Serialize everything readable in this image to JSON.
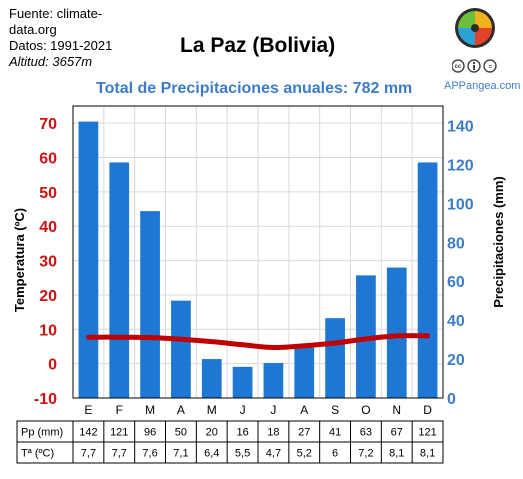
{
  "source": {
    "line1": "Fuente: climate-",
    "line2": "data.org",
    "line3": "Datos: 1991-2021",
    "line4": "Altitud: 3657m"
  },
  "brand": "APPangea.com",
  "colors": {
    "bars": "#1f77d4",
    "temperature_line": "#c00000",
    "left_axis": "#cc1111",
    "right_axis": "#3d7cc9"
  },
  "chart_data": {
    "type": "bar",
    "title": "La Paz (Bolivia)",
    "subtitle": "Total de Precipitaciones anuales: 782 mm",
    "categories": [
      "E",
      "F",
      "M",
      "A",
      "M",
      "J",
      "J",
      "A",
      "S",
      "O",
      "N",
      "D"
    ],
    "ylabel_left": "Temperatura (ºC)",
    "ylabel_right": "Precipitaciones (mm)",
    "ylim_left": [
      -10,
      75
    ],
    "ylim_right": [
      0,
      150
    ],
    "yticks_left": [
      -10,
      0,
      10,
      20,
      30,
      40,
      50,
      60,
      70
    ],
    "yticks_right": [
      0,
      20,
      40,
      60,
      80,
      100,
      120,
      140
    ],
    "series": [
      {
        "name": "Pp (mm)",
        "type": "bar",
        "axis": "right",
        "values": [
          142,
          121,
          96,
          50,
          20,
          16,
          18,
          27,
          41,
          63,
          67,
          121
        ]
      },
      {
        "name": "Tª (ºC)",
        "type": "line",
        "axis": "left",
        "values": [
          7.7,
          7.7,
          7.6,
          7.1,
          6.4,
          5.5,
          4.7,
          5.2,
          6,
          7.2,
          8.1,
          8.1
        ]
      }
    ],
    "table": {
      "rows": [
        {
          "label": "Pp (mm)",
          "cells": [
            "142",
            "121",
            "96",
            "50",
            "20",
            "16",
            "18",
            "27",
            "41",
            "63",
            "67",
            "121"
          ]
        },
        {
          "label": "Tª (ºC)",
          "cells": [
            "7,7",
            "7,7",
            "7,6",
            "7,1",
            "6,4",
            "5,5",
            "4,7",
            "5,2",
            "6",
            "7,2",
            "8,1",
            "8,1"
          ]
        }
      ]
    }
  }
}
